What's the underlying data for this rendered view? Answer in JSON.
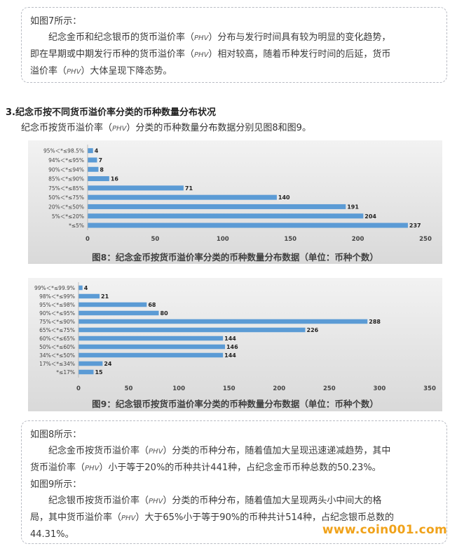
{
  "note1": {
    "heading": "如图7所示：",
    "line1": "纪念金币和纪念银币的货币溢价率（",
    "pm": "PHV",
    "line1b": "）分布与发行时间具有较为明显的变化趋势，",
    "line2a": "即在早期或中期发行币种的货币溢价率（",
    "line2b": "）相对较高，随着币种发行时间的后延，货币",
    "line3a": "溢价率（",
    "line3b": "）大体呈现下降态势。"
  },
  "section": {
    "title": "3.纪念币按不同货币溢价率分类的币种数量分布状况",
    "sub_a": "纪念币按货币溢价率（",
    "sub_b": "）分类的币种数量分布数据分别见图8和图9。"
  },
  "chart_data": [
    {
      "type": "bar",
      "orientation": "horizontal",
      "title": "图8：纪念金币按货币溢价率分类的币种数量分布数据（单位：币种个数）",
      "categories": [
        "95%＜*≤98.5%",
        "94%＜*≤95%",
        "90%＜*≤94%",
        "85%＜*≤90%",
        "75%＜*≤85%",
        "50%＜*≤75%",
        "20%＜*≤50%",
        "5%＜*≤20%",
        "*≤5%"
      ],
      "values": [
        4,
        7,
        8,
        16,
        71,
        140,
        191,
        204,
        237
      ],
      "xticks": [
        "0",
        "50",
        "100",
        "150",
        "200",
        "250"
      ],
      "xlim": [
        0,
        250
      ],
      "color": "#5b9bd5",
      "grid": false
    },
    {
      "type": "bar",
      "orientation": "horizontal",
      "title": "图9：纪念银币按货币溢价率分类的币种数量分布数据（单位：币种个数）",
      "categories": [
        "99%＜*≤99.9%",
        "98%＜*≤99%",
        "95%＜*≤98%",
        "90%＜*≤95%",
        "75%＜*≤90%",
        "65%＜*≤75%",
        "60%＜*≤65%",
        "50%＜*≤60%",
        "34%＜*≤50%",
        "17%＜*≤34%",
        "*≤17%"
      ],
      "values": [
        4,
        21,
        68,
        80,
        288,
        226,
        144,
        146,
        144,
        24,
        15
      ],
      "xticks": [
        "0",
        "50",
        "100",
        "150",
        "200",
        "250",
        "300",
        "350"
      ],
      "xlim": [
        0,
        350
      ],
      "color": "#5b9bd5",
      "grid": false
    }
  ],
  "note2": {
    "h1": "如图8所示：",
    "p1a": "纪念金币按货币溢价率（",
    "p1b": "）分类的币种分布，随着值加大呈现迅速递减趋势，其中",
    "p1c": "货币溢价率（",
    "p1d": "）小于等于20%的币种共计441种，占纪念金币币种总数的50.23%。",
    "h2": "如图9所示：",
    "p2a": "纪念银币按货币溢价率（",
    "p2b": "）分类的币种分布，随着值加大呈现两头小中间大的格",
    "p2c": "局，其中货币溢价率（",
    "p2d": "）大于65%小于等于90%的币种共计514种，占纪念银币总数的",
    "p2e": "44.31%。"
  },
  "watermark": "www.coin001.com"
}
